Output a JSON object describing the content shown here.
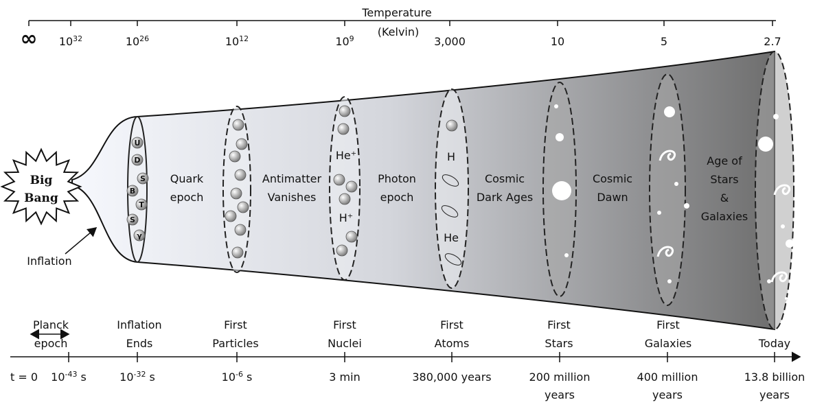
{
  "temperature": {
    "title": "Temperature",
    "unit": "(Kelvin)",
    "ticks": [
      {
        "label": "∞"
      },
      {
        "base": "10",
        "exp": "32"
      },
      {
        "base": "10",
        "exp": "26"
      },
      {
        "base": "10",
        "exp": "12"
      },
      {
        "base": "10",
        "exp": "9"
      },
      {
        "label": "3,000"
      },
      {
        "label": "10"
      },
      {
        "label": "5"
      },
      {
        "label": "2.7"
      }
    ]
  },
  "big_bang": {
    "lines": [
      "Big",
      "Bang"
    ]
  },
  "inflation_label": "Inflation",
  "eras": [
    {
      "lines": [
        "Quark",
        "epoch"
      ]
    },
    {
      "lines": [
        "Antimatter",
        "Vanishes"
      ]
    },
    {
      "lines": [
        "Photon",
        "epoch"
      ]
    },
    {
      "lines": [
        "Cosmic",
        "Dark Ages"
      ]
    },
    {
      "lines": [
        "Cosmic",
        "Dawn"
      ]
    },
    {
      "lines": [
        "Age of",
        "Stars",
        "&",
        "Galaxies"
      ]
    }
  ],
  "particles": {
    "quarks": [
      "U",
      "D",
      "S",
      "B",
      "T",
      "S",
      "γ"
    ],
    "nuclei": [
      "He⁺",
      "H⁺"
    ],
    "atoms": [
      "H",
      "He"
    ]
  },
  "events": [
    {
      "lines": [
        "Planck",
        "epoch"
      ]
    },
    {
      "lines": [
        "Inflation",
        "Ends"
      ]
    },
    {
      "lines": [
        "First",
        "Particles"
      ]
    },
    {
      "lines": [
        "First",
        "Nuclei"
      ]
    },
    {
      "lines": [
        "First",
        "Atoms"
      ]
    },
    {
      "lines": [
        "First",
        "Stars"
      ]
    },
    {
      "lines": [
        "First",
        "Galaxies"
      ]
    },
    {
      "lines": [
        "Today"
      ]
    }
  ],
  "time_ticks": [
    {
      "label": "t = 0"
    },
    {
      "base": "10",
      "exp": "-43",
      "unit": "s"
    },
    {
      "base": "10",
      "exp": "-32",
      "unit": "s"
    },
    {
      "base": "10",
      "exp": "-6",
      "unit": "s"
    },
    {
      "label": "3 min"
    },
    {
      "label": "380,000 years"
    },
    {
      "lines": [
        "200 million",
        "years"
      ]
    },
    {
      "lines": [
        "400 million",
        "years"
      ]
    },
    {
      "lines": [
        "13.8 billion",
        "years"
      ]
    }
  ]
}
